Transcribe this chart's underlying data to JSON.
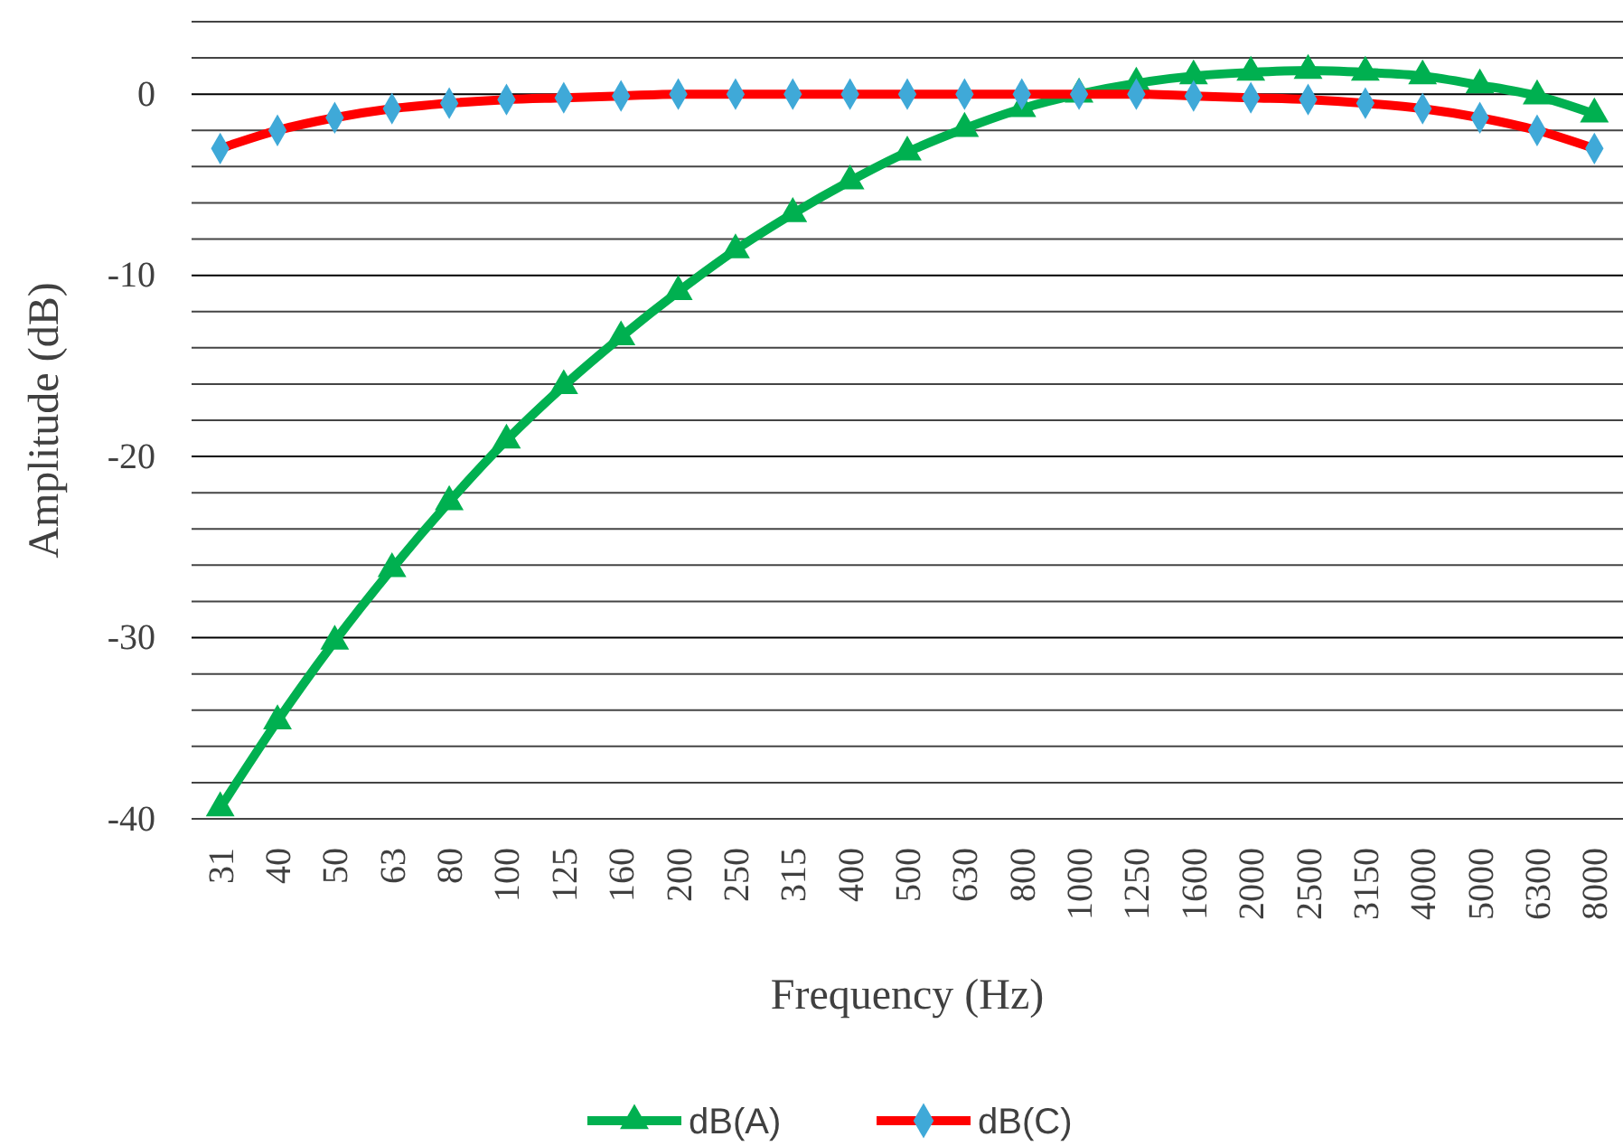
{
  "chart_data": {
    "type": "line",
    "xlabel": "Frequency (Hz)",
    "ylabel": "Amplitude (dB)",
    "categories": [
      "31",
      "40",
      "50",
      "63",
      "80",
      "100",
      "125",
      "160",
      "200",
      "250",
      "315",
      "400",
      "500",
      "630",
      "800",
      "1000",
      "1250",
      "1600",
      "2000",
      "2500",
      "3150",
      "4000",
      "5000",
      "6300",
      "8000"
    ],
    "series": [
      {
        "name": "dB(A)",
        "color": "#00b050",
        "marker": "triangle",
        "values": [
          -39.4,
          -34.6,
          -30.2,
          -26.2,
          -22.5,
          -19.1,
          -16.1,
          -13.4,
          -10.9,
          -8.6,
          -6.6,
          -4.8,
          -3.2,
          -1.9,
          -0.8,
          0,
          0.6,
          1.0,
          1.2,
          1.3,
          1.2,
          1.0,
          0.5,
          -0.1,
          -1.1
        ]
      },
      {
        "name": "dB(C)",
        "color": "#ff0000",
        "marker": "diamond",
        "values": [
          -3.0,
          -2.0,
          -1.3,
          -0.8,
          -0.5,
          -0.3,
          -0.2,
          -0.1,
          0,
          0,
          0,
          0,
          0,
          0,
          0,
          0,
          0,
          -0.1,
          -0.2,
          -0.3,
          -0.5,
          -0.8,
          -1.3,
          -2.0,
          -3.0
        ]
      }
    ],
    "ylim": [
      -40,
      4
    ],
    "yticks": [
      -40,
      {
        "value": -38,
        "label": null
      },
      {
        "value": -36,
        "label": null
      },
      {
        "value": -34,
        "label": null
      },
      {
        "value": -32,
        "label": null
      },
      -30,
      {
        "value": -28,
        "label": null
      },
      {
        "value": -26,
        "label": null
      },
      {
        "value": -24,
        "label": null
      },
      {
        "value": -22,
        "label": null
      },
      -20,
      {
        "value": -18,
        "label": null
      },
      {
        "value": -16,
        "label": null
      },
      {
        "value": -14,
        "label": null
      },
      {
        "value": -12,
        "label": null
      },
      -10,
      {
        "value": -8,
        "label": null
      },
      {
        "value": -6,
        "label": null
      },
      {
        "value": -4,
        "label": null
      },
      {
        "value": -2,
        "label": null
      },
      0,
      {
        "value": 2,
        "label": null
      },
      {
        "value": 4,
        "label": null
      }
    ],
    "grid": true,
    "legend": "bottom",
    "line_style": "solid"
  }
}
